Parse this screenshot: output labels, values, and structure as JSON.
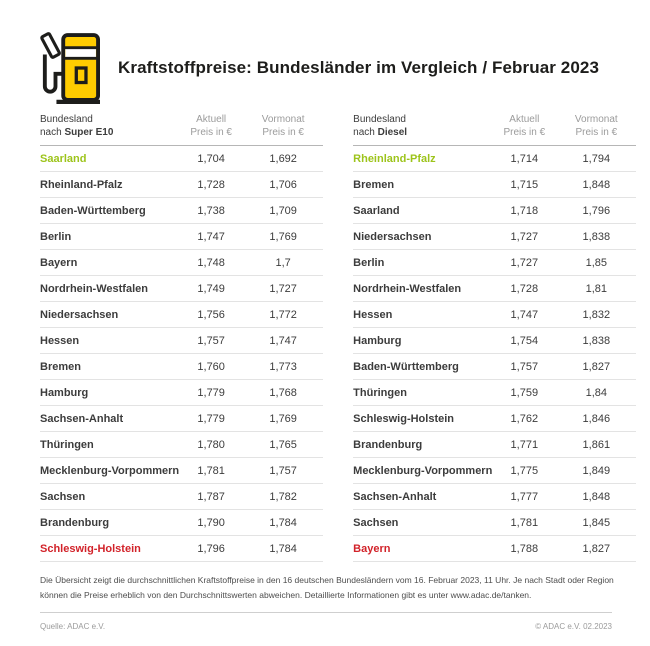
{
  "header": {
    "title": "Kraftstoffpreise: Bundesländer im Vergleich / Februar 2023"
  },
  "table_columns": {
    "state_line1": "Bundesland",
    "state_prefix": "nach ",
    "current_line1": "Aktuell",
    "current_line2": "Preis in €",
    "previous_line1": "Vormonat",
    "previous_line2": "Preis in €"
  },
  "chart_data": {
    "type": "table",
    "title": "Kraftstoffpreise: Bundesländer im Vergleich / Februar 2023",
    "tables": [
      {
        "fuel": "Super E10",
        "rows": [
          {
            "state": "Saarland",
            "current": "1,704",
            "previous": "1,692",
            "highlight": "best"
          },
          {
            "state": "Rheinland-Pfalz",
            "current": "1,728",
            "previous": "1,706",
            "highlight": ""
          },
          {
            "state": "Baden-Württemberg",
            "current": "1,738",
            "previous": "1,709",
            "highlight": ""
          },
          {
            "state": "Berlin",
            "current": "1,747",
            "previous": "1,769",
            "highlight": ""
          },
          {
            "state": "Bayern",
            "current": "1,748",
            "previous": "1,7",
            "highlight": ""
          },
          {
            "state": "Nordrhein-Westfalen",
            "current": "1,749",
            "previous": "1,727",
            "highlight": ""
          },
          {
            "state": "Niedersachsen",
            "current": "1,756",
            "previous": "1,772",
            "highlight": ""
          },
          {
            "state": "Hessen",
            "current": "1,757",
            "previous": "1,747",
            "highlight": ""
          },
          {
            "state": "Bremen",
            "current": "1,760",
            "previous": "1,773",
            "highlight": ""
          },
          {
            "state": "Hamburg",
            "current": "1,779",
            "previous": "1,768",
            "highlight": ""
          },
          {
            "state": "Sachsen-Anhalt",
            "current": "1,779",
            "previous": "1,769",
            "highlight": ""
          },
          {
            "state": "Thüringen",
            "current": "1,780",
            "previous": "1,765",
            "highlight": ""
          },
          {
            "state": "Mecklenburg-Vorpommern",
            "current": "1,781",
            "previous": "1,757",
            "highlight": ""
          },
          {
            "state": "Sachsen",
            "current": "1,787",
            "previous": "1,782",
            "highlight": ""
          },
          {
            "state": "Brandenburg",
            "current": "1,790",
            "previous": "1,784",
            "highlight": ""
          },
          {
            "state": "Schleswig-Holstein",
            "current": "1,796",
            "previous": "1,784",
            "highlight": "worst"
          }
        ]
      },
      {
        "fuel": "Diesel",
        "rows": [
          {
            "state": "Rheinland-Pfalz",
            "current": "1,714",
            "previous": "1,794",
            "highlight": "best"
          },
          {
            "state": "Bremen",
            "current": "1,715",
            "previous": "1,848",
            "highlight": ""
          },
          {
            "state": "Saarland",
            "current": "1,718",
            "previous": "1,796",
            "highlight": ""
          },
          {
            "state": "Niedersachsen",
            "current": "1,727",
            "previous": "1,838",
            "highlight": ""
          },
          {
            "state": "Berlin",
            "current": "1,727",
            "previous": "1,85",
            "highlight": ""
          },
          {
            "state": "Nordrhein-Westfalen",
            "current": "1,728",
            "previous": "1,81",
            "highlight": ""
          },
          {
            "state": "Hessen",
            "current": "1,747",
            "previous": "1,832",
            "highlight": ""
          },
          {
            "state": "Hamburg",
            "current": "1,754",
            "previous": "1,838",
            "highlight": ""
          },
          {
            "state": "Baden-Württemberg",
            "current": "1,757",
            "previous": "1,827",
            "highlight": ""
          },
          {
            "state": "Thüringen",
            "current": "1,759",
            "previous": "1,84",
            "highlight": ""
          },
          {
            "state": "Schleswig-Holstein",
            "current": "1,762",
            "previous": "1,846",
            "highlight": ""
          },
          {
            "state": "Brandenburg",
            "current": "1,771",
            "previous": "1,861",
            "highlight": ""
          },
          {
            "state": "Mecklenburg-Vorpommern",
            "current": "1,775",
            "previous": "1,849",
            "highlight": ""
          },
          {
            "state": "Sachsen-Anhalt",
            "current": "1,777",
            "previous": "1,848",
            "highlight": ""
          },
          {
            "state": "Sachsen",
            "current": "1,781",
            "previous": "1,845",
            "highlight": ""
          },
          {
            "state": "Bayern",
            "current": "1,788",
            "previous": "1,827",
            "highlight": "worst"
          }
        ]
      }
    ]
  },
  "footer": {
    "note": "Die Übersicht zeigt die durchschnittlichen Kraftstoffpreise in den 16 deutschen Bundesländern vom 16. Februar 2023, 11 Uhr. Je nach Stadt oder Region können die Preise erheblich von den Durchschnittswerten abweichen. Detaillierte Informationen gibt es unter www.adac.de/tanken.",
    "source": "Quelle: ADAC e.V.",
    "copyright": "© ADAC e.V. 02.2023"
  },
  "colors": {
    "adac_yellow": "#FFCC00",
    "icon_outline": "#1d1d1b",
    "best": "#9dc41b",
    "worst": "#d2232a",
    "text_dark": "#3c3c3c",
    "text_gray": "#9b9b9b"
  }
}
